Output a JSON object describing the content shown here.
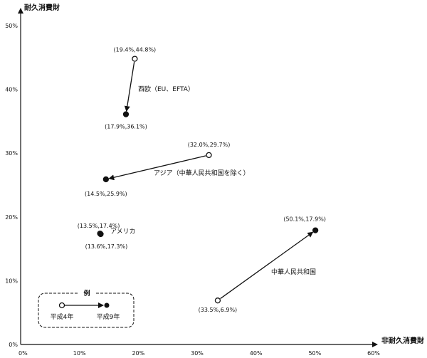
{
  "chart_data": {
    "type": "scatter",
    "title": "",
    "xlabel": "非耐久消費財",
    "ylabel": "耐久消費財",
    "xlim": [
      0,
      60
    ],
    "ylim": [
      0,
      50
    ],
    "x_ticks": [
      0,
      10,
      20,
      30,
      40,
      50,
      60
    ],
    "y_ticks": [
      0,
      10,
      20,
      30,
      40,
      50
    ],
    "x_tick_labels": [
      "0%",
      "10%",
      "20%",
      "30%",
      "40%",
      "50%",
      "60%"
    ],
    "y_tick_labels": [
      "0%",
      "10%",
      "20%",
      "30%",
      "40%",
      "50%"
    ],
    "grid": false,
    "series": [
      {
        "name": "西欧（EU、EFTA）",
        "points": [
          {
            "x": 19.4,
            "y": 44.8,
            "label": "(19.4%,44.8%)",
            "marker": "open"
          },
          {
            "x": 17.9,
            "y": 36.1,
            "label": "(17.9%,36.1%)",
            "marker": "filled"
          }
        ]
      },
      {
        "name": "アジア（中華人民共和国を除く）",
        "points": [
          {
            "x": 32.0,
            "y": 29.7,
            "label": "(32.0%,29.7%)",
            "marker": "open"
          },
          {
            "x": 14.5,
            "y": 25.9,
            "label": "(14.5%,25.9%)",
            "marker": "filled"
          }
        ]
      },
      {
        "name": "アメリカ",
        "points": [
          {
            "x": 13.5,
            "y": 17.4,
            "label": "(13.5%,17.4%)",
            "marker": "open"
          },
          {
            "x": 13.6,
            "y": 17.3,
            "label": "(13.6%,17.3%)",
            "marker": "filled"
          }
        ]
      },
      {
        "name": "中華人民共和国",
        "points": [
          {
            "x": 33.5,
            "y": 6.9,
            "label": "(33.5%,6.9%)",
            "marker": "open"
          },
          {
            "x": 50.1,
            "y": 17.9,
            "label": "(50.1%,17.9%)",
            "marker": "filled"
          }
        ]
      }
    ],
    "legend": {
      "title": "例",
      "open_label": "平成4年",
      "filled_label": "平成9年",
      "placement": "bottom-left"
    }
  }
}
